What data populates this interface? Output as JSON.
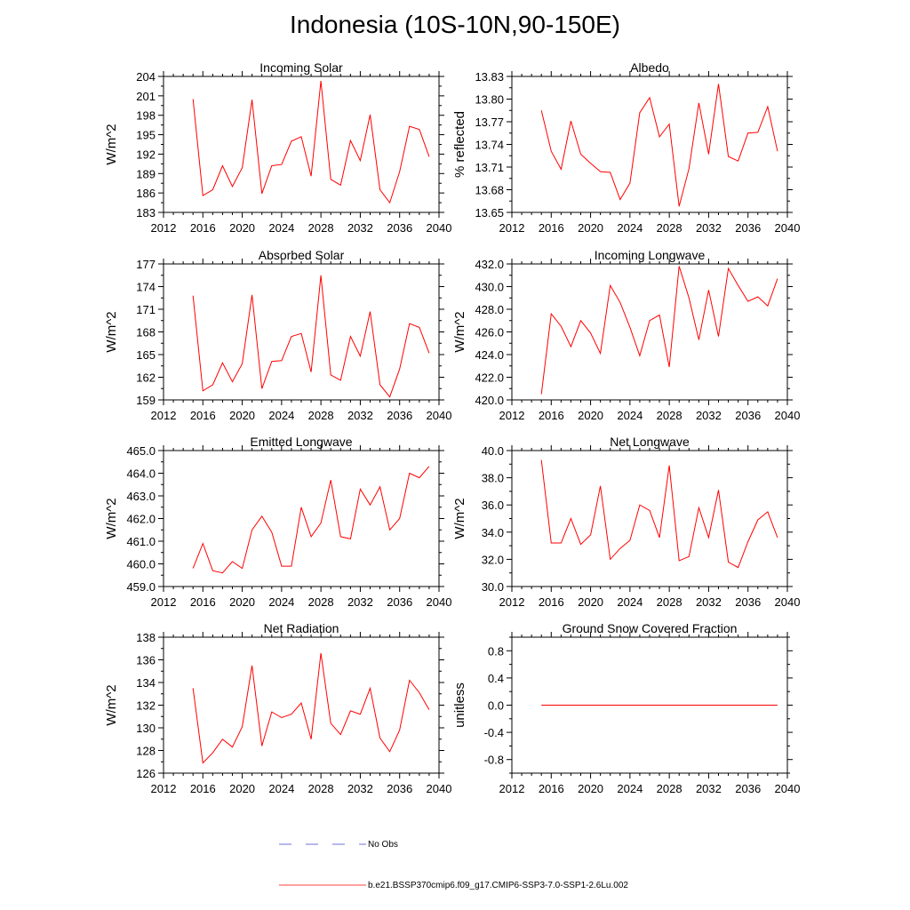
{
  "title": "Indonesia (10S-10N,90-150E)",
  "legend": {
    "obs_label": "No Obs",
    "model_label": "b.e21.BSSP370cmip6.f09_g17.CMIP6-SSP3-7.0-SSP1-2.6Lu.002",
    "obs_color": "#4444cc",
    "model_color": "#ff0000"
  },
  "chart_data": [
    {
      "type": "line",
      "title": "Incoming Solar",
      "ylabel": "W/m^2",
      "x": [
        2015,
        2016,
        2017,
        2018,
        2019,
        2020,
        2021,
        2022,
        2023,
        2024,
        2025,
        2026,
        2027,
        2028,
        2029,
        2030,
        2031,
        2032,
        2033,
        2034,
        2035,
        2036,
        2037,
        2038,
        2039
      ],
      "values": [
        200.5,
        185.6,
        186.5,
        190.2,
        187.0,
        189.9,
        200.4,
        185.9,
        190.2,
        190.4,
        194.0,
        194.7,
        188.6,
        203.3,
        188.1,
        187.2,
        194.1,
        191.0,
        198.1,
        186.5,
        184.5,
        189.3,
        196.3,
        195.8,
        191.6
      ],
      "xlim": [
        2012,
        2040
      ],
      "ylim": [
        183,
        204
      ],
      "xticks": [
        "2012",
        "2016",
        "2020",
        "2024",
        "2028",
        "2032",
        "2036",
        "2040"
      ],
      "yticks": [
        "183",
        "186",
        "189",
        "192",
        "195",
        "198",
        "201",
        "204"
      ]
    },
    {
      "type": "line",
      "title": "Albedo",
      "ylabel": "% reflected",
      "x": [
        2015,
        2016,
        2017,
        2018,
        2019,
        2020,
        2021,
        2022,
        2023,
        2024,
        2025,
        2026,
        2027,
        2028,
        2029,
        2030,
        2031,
        2032,
        2033,
        2034,
        2035,
        2036,
        2037,
        2038,
        2039
      ],
      "values": [
        13.785,
        13.731,
        13.707,
        13.771,
        13.727,
        13.715,
        13.704,
        13.703,
        13.667,
        13.689,
        13.782,
        13.802,
        13.75,
        13.767,
        13.658,
        13.708,
        13.795,
        13.727,
        13.82,
        13.724,
        13.718,
        13.755,
        13.756,
        13.79,
        13.731
      ],
      "xlim": [
        2012,
        2040
      ],
      "ylim": [
        13.65,
        13.83
      ],
      "xticks": [
        "2012",
        "2016",
        "2020",
        "2024",
        "2028",
        "2032",
        "2036",
        "2040"
      ],
      "yticks": [
        "13.65",
        "13.68",
        "13.71",
        "13.74",
        "13.77",
        "13.80",
        "13.83"
      ]
    },
    {
      "type": "line",
      "title": "Absorbed Solar",
      "ylabel": "W/m^2",
      "x": [
        2015,
        2016,
        2017,
        2018,
        2019,
        2020,
        2021,
        2022,
        2023,
        2024,
        2025,
        2026,
        2027,
        2028,
        2029,
        2030,
        2031,
        2032,
        2033,
        2034,
        2035,
        2036,
        2037,
        2038,
        2039
      ],
      "values": [
        172.8,
        160.2,
        161.0,
        163.9,
        161.4,
        163.8,
        172.9,
        160.5,
        164.1,
        164.2,
        167.4,
        167.8,
        162.7,
        175.5,
        162.3,
        161.6,
        167.4,
        164.8,
        170.7,
        161.0,
        159.4,
        163.1,
        169.1,
        168.6,
        165.2
      ],
      "xlim": [
        2012,
        2040
      ],
      "ylim": [
        159,
        177
      ],
      "xticks": [
        "2012",
        "2016",
        "2020",
        "2024",
        "2028",
        "2032",
        "2036",
        "2040"
      ],
      "yticks": [
        "159",
        "162",
        "165",
        "168",
        "171",
        "174",
        "177"
      ]
    },
    {
      "type": "line",
      "title": "Incoming Longwave",
      "ylabel": "W/m^2",
      "x": [
        2015,
        2016,
        2017,
        2018,
        2019,
        2020,
        2021,
        2022,
        2023,
        2024,
        2025,
        2026,
        2027,
        2028,
        2029,
        2030,
        2031,
        2032,
        2033,
        2034,
        2035,
        2036,
        2037,
        2038,
        2039
      ],
      "values": [
        420.5,
        427.6,
        426.5,
        424.7,
        427.0,
        425.9,
        424.1,
        430.1,
        428.6,
        426.4,
        423.9,
        427.0,
        427.5,
        422.9,
        431.8,
        429.0,
        425.3,
        429.7,
        425.6,
        431.6,
        430.1,
        428.7,
        429.1,
        428.3,
        430.7
      ],
      "xlim": [
        2012,
        2040
      ],
      "ylim": [
        420,
        432
      ],
      "xticks": [
        "2012",
        "2016",
        "2020",
        "2024",
        "2028",
        "2032",
        "2036",
        "2040"
      ],
      "yticks": [
        "420.0",
        "422.0",
        "424.0",
        "426.0",
        "428.0",
        "430.0",
        "432.0"
      ]
    },
    {
      "type": "line",
      "title": "Emitted Longwave",
      "ylabel": "W/m^2",
      "x": [
        2015,
        2016,
        2017,
        2018,
        2019,
        2020,
        2021,
        2022,
        2023,
        2024,
        2025,
        2026,
        2027,
        2028,
        2029,
        2030,
        2031,
        2032,
        2033,
        2034,
        2035,
        2036,
        2037,
        2038,
        2039
      ],
      "values": [
        459.8,
        460.9,
        459.7,
        459.6,
        460.1,
        459.8,
        461.5,
        462.1,
        461.4,
        459.9,
        459.9,
        462.5,
        461.2,
        461.8,
        463.7,
        461.2,
        461.1,
        463.3,
        462.6,
        463.4,
        461.5,
        462.0,
        464.0,
        463.8,
        464.3
      ],
      "xlim": [
        2012,
        2040
      ],
      "ylim": [
        459,
        465
      ],
      "xticks": [
        "2012",
        "2016",
        "2020",
        "2024",
        "2028",
        "2032",
        "2036",
        "2040"
      ],
      "yticks": [
        "459.0",
        "460.0",
        "461.0",
        "462.0",
        "463.0",
        "464.0",
        "465.0"
      ]
    },
    {
      "type": "line",
      "title": "Net Longwave",
      "ylabel": "W/m^2",
      "x": [
        2015,
        2016,
        2017,
        2018,
        2019,
        2020,
        2021,
        2022,
        2023,
        2024,
        2025,
        2026,
        2027,
        2028,
        2029,
        2030,
        2031,
        2032,
        2033,
        2034,
        2035,
        2036,
        2037,
        2038,
        2039
      ],
      "values": [
        39.3,
        33.2,
        33.2,
        35.0,
        33.1,
        33.8,
        37.4,
        32.0,
        32.8,
        33.4,
        36.0,
        35.6,
        33.6,
        38.9,
        31.9,
        32.2,
        35.8,
        33.6,
        37.1,
        31.8,
        31.4,
        33.3,
        34.9,
        35.5,
        33.6
      ],
      "xlim": [
        2012,
        2040
      ],
      "ylim": [
        30,
        40
      ],
      "xticks": [
        "2012",
        "2016",
        "2020",
        "2024",
        "2028",
        "2032",
        "2036",
        "2040"
      ],
      "yticks": [
        "30.0",
        "32.0",
        "34.0",
        "36.0",
        "38.0",
        "40.0"
      ]
    },
    {
      "type": "line",
      "title": "Net Radiation",
      "ylabel": "W/m^2",
      "x": [
        2015,
        2016,
        2017,
        2018,
        2019,
        2020,
        2021,
        2022,
        2023,
        2024,
        2025,
        2026,
        2027,
        2028,
        2029,
        2030,
        2031,
        2032,
        2033,
        2034,
        2035,
        2036,
        2037,
        2038,
        2039
      ],
      "values": [
        133.5,
        126.9,
        127.8,
        129.0,
        128.3,
        130.1,
        135.5,
        128.4,
        131.4,
        130.9,
        131.2,
        132.2,
        129.0,
        136.6,
        130.4,
        129.4,
        131.5,
        131.2,
        133.5,
        129.1,
        127.9,
        129.8,
        134.2,
        133.1,
        131.6
      ],
      "xlim": [
        2012,
        2040
      ],
      "ylim": [
        126,
        138
      ],
      "xticks": [
        "2012",
        "2016",
        "2020",
        "2024",
        "2028",
        "2032",
        "2036",
        "2040"
      ],
      "yticks": [
        "126",
        "128",
        "130",
        "132",
        "134",
        "136",
        "138"
      ]
    },
    {
      "type": "line",
      "title": "Ground Snow Covered Fraction",
      "ylabel": "unitless",
      "x": [
        2015,
        2016,
        2017,
        2018,
        2019,
        2020,
        2021,
        2022,
        2023,
        2024,
        2025,
        2026,
        2027,
        2028,
        2029,
        2030,
        2031,
        2032,
        2033,
        2034,
        2035,
        2036,
        2037,
        2038,
        2039
      ],
      "values": [
        0,
        0,
        0,
        0,
        0,
        0,
        0,
        0,
        0,
        0,
        0,
        0,
        0,
        0,
        0,
        0,
        0,
        0,
        0,
        0,
        0,
        0,
        0,
        0,
        0
      ],
      "xlim": [
        2012,
        2040
      ],
      "ylim": [
        -1.0,
        1.0
      ],
      "xticks": [
        "2012",
        "2016",
        "2020",
        "2024",
        "2028",
        "2032",
        "2036",
        "2040"
      ],
      "yticks": [
        "-0.8",
        "-0.4",
        "0.0",
        "0.4",
        "0.8"
      ]
    }
  ]
}
